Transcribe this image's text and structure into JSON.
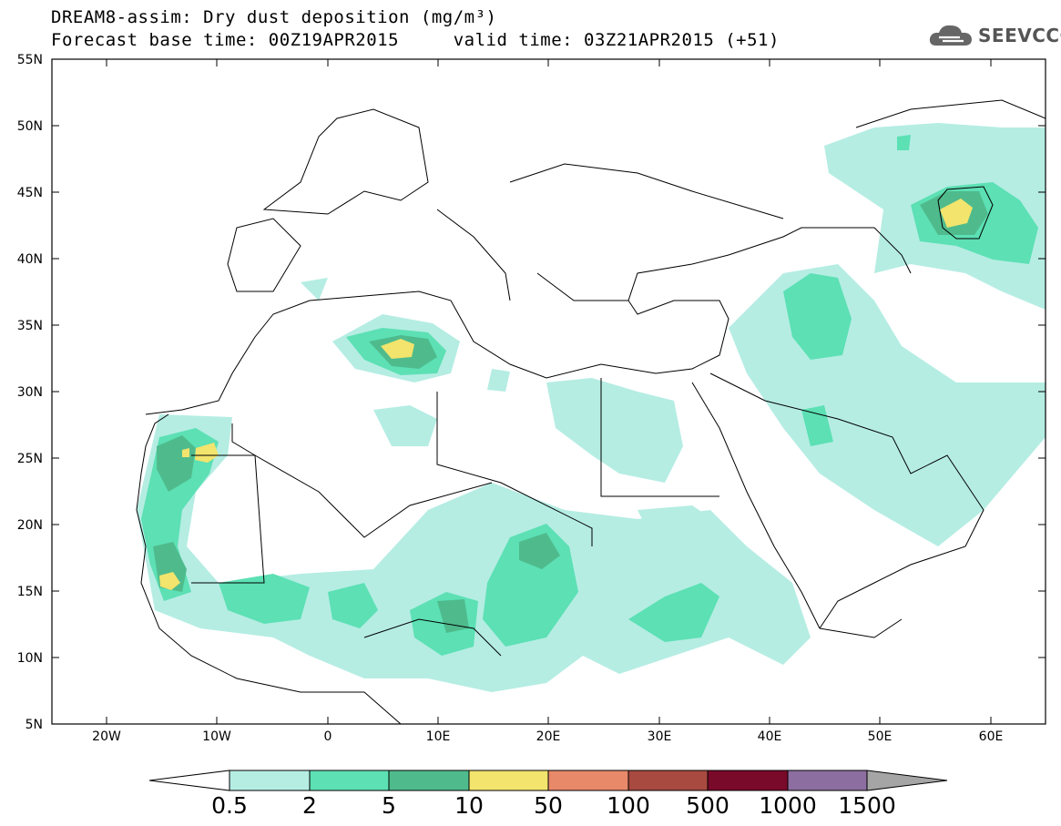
{
  "header": {
    "title": "DREAM8-assim: Dry dust deposition (mg/m³)",
    "subtitle": "Forecast base time: 00Z19APR2015     valid time: 03Z21APR2015 (+51)"
  },
  "logo": {
    "text": "SEEVCCC",
    "icon": "cloud-icon"
  },
  "map_data": {
    "projection": "equirectangular",
    "lon_range": [
      -25,
      65
    ],
    "lat_range": [
      5,
      55
    ],
    "lon_ticks": [
      "20W",
      "10W",
      "0",
      "10E",
      "20E",
      "30E",
      "40E",
      "50E",
      "60E"
    ],
    "lat_ticks": [
      "55N",
      "50N",
      "45N",
      "40N",
      "35N",
      "30N",
      "25N",
      "20N",
      "15N",
      "10N",
      "5N"
    ]
  },
  "legend": {
    "labels": [
      "0.5",
      "2",
      "5",
      "10",
      "50",
      "100",
      "500",
      "1000",
      "1500"
    ],
    "colors": [
      "#b5ede3",
      "#5ce0b4",
      "#4fbb8d",
      "#f2e46c",
      "#e8896a",
      "#a84a40",
      "#7a0a2a",
      "#8c6ea0",
      "#a5a5a5"
    ],
    "under_color": "#ffffff"
  }
}
